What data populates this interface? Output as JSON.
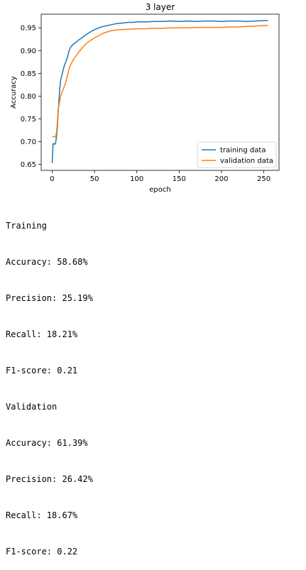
{
  "chart_data": {
    "type": "line",
    "title": "3 layer",
    "xlabel": "epoch",
    "ylabel": "Accuracy",
    "xlim": [
      -13,
      268
    ],
    "ylim": [
      0.637,
      0.98
    ],
    "xticks": [
      0,
      50,
      100,
      150,
      200,
      250
    ],
    "yticks": [
      0.65,
      0.7,
      0.75,
      0.8,
      0.85,
      0.9,
      0.95
    ],
    "grid": false,
    "legend_position": "lower-right",
    "series": [
      {
        "name": "training data",
        "color": "#1f77b4",
        "x": [
          0,
          1,
          2,
          3,
          4,
          5,
          6,
          7,
          8,
          9,
          10,
          12,
          14,
          16,
          18,
          20,
          22,
          25,
          28,
          31,
          35,
          40,
          45,
          50,
          55,
          60,
          65,
          70,
          75,
          80,
          85,
          90,
          95,
          100,
          110,
          120,
          130,
          140,
          150,
          160,
          170,
          180,
          190,
          200,
          210,
          220,
          230,
          240,
          250,
          255
        ],
        "y": [
          0.653,
          0.695,
          0.696,
          0.694,
          0.697,
          0.71,
          0.73,
          0.76,
          0.79,
          0.815,
          0.835,
          0.85,
          0.865,
          0.875,
          0.885,
          0.9,
          0.908,
          0.914,
          0.918,
          0.923,
          0.928,
          0.935,
          0.941,
          0.946,
          0.95,
          0.953,
          0.955,
          0.957,
          0.959,
          0.96,
          0.961,
          0.962,
          0.962,
          0.963,
          0.963,
          0.964,
          0.964,
          0.965,
          0.964,
          0.965,
          0.964,
          0.965,
          0.965,
          0.964,
          0.965,
          0.965,
          0.964,
          0.965,
          0.966,
          0.966
        ]
      },
      {
        "name": "validation data",
        "color": "#ff7f0e",
        "x": [
          0,
          2,
          4,
          5,
          6,
          7,
          8,
          9,
          10,
          12,
          14,
          16,
          18,
          20,
          22,
          25,
          28,
          31,
          35,
          40,
          45,
          50,
          55,
          60,
          65,
          70,
          75,
          80,
          90,
          100,
          110,
          120,
          130,
          140,
          150,
          160,
          170,
          180,
          190,
          200,
          210,
          220,
          230,
          240,
          250,
          255
        ],
        "y": [
          0.711,
          0.711,
          0.71,
          0.72,
          0.74,
          0.77,
          0.78,
          0.79,
          0.8,
          0.81,
          0.82,
          0.83,
          0.845,
          0.86,
          0.87,
          0.88,
          0.888,
          0.896,
          0.905,
          0.915,
          0.922,
          0.928,
          0.933,
          0.938,
          0.941,
          0.944,
          0.945,
          0.946,
          0.947,
          0.948,
          0.948,
          0.949,
          0.949,
          0.95,
          0.95,
          0.95,
          0.951,
          0.951,
          0.951,
          0.951,
          0.952,
          0.952,
          0.953,
          0.954,
          0.955,
          0.955
        ]
      }
    ]
  },
  "metrics": {
    "lines": [
      "Training",
      "Accuracy: 58.68%",
      "Precision: 25.19%",
      "Recall: 18.21%",
      "F1-score: 0.21",
      "Validation",
      "Accuracy: 61.39%",
      "Precision: 26.42%",
      "Recall: 18.67%",
      "F1-score: 0.22"
    ]
  }
}
